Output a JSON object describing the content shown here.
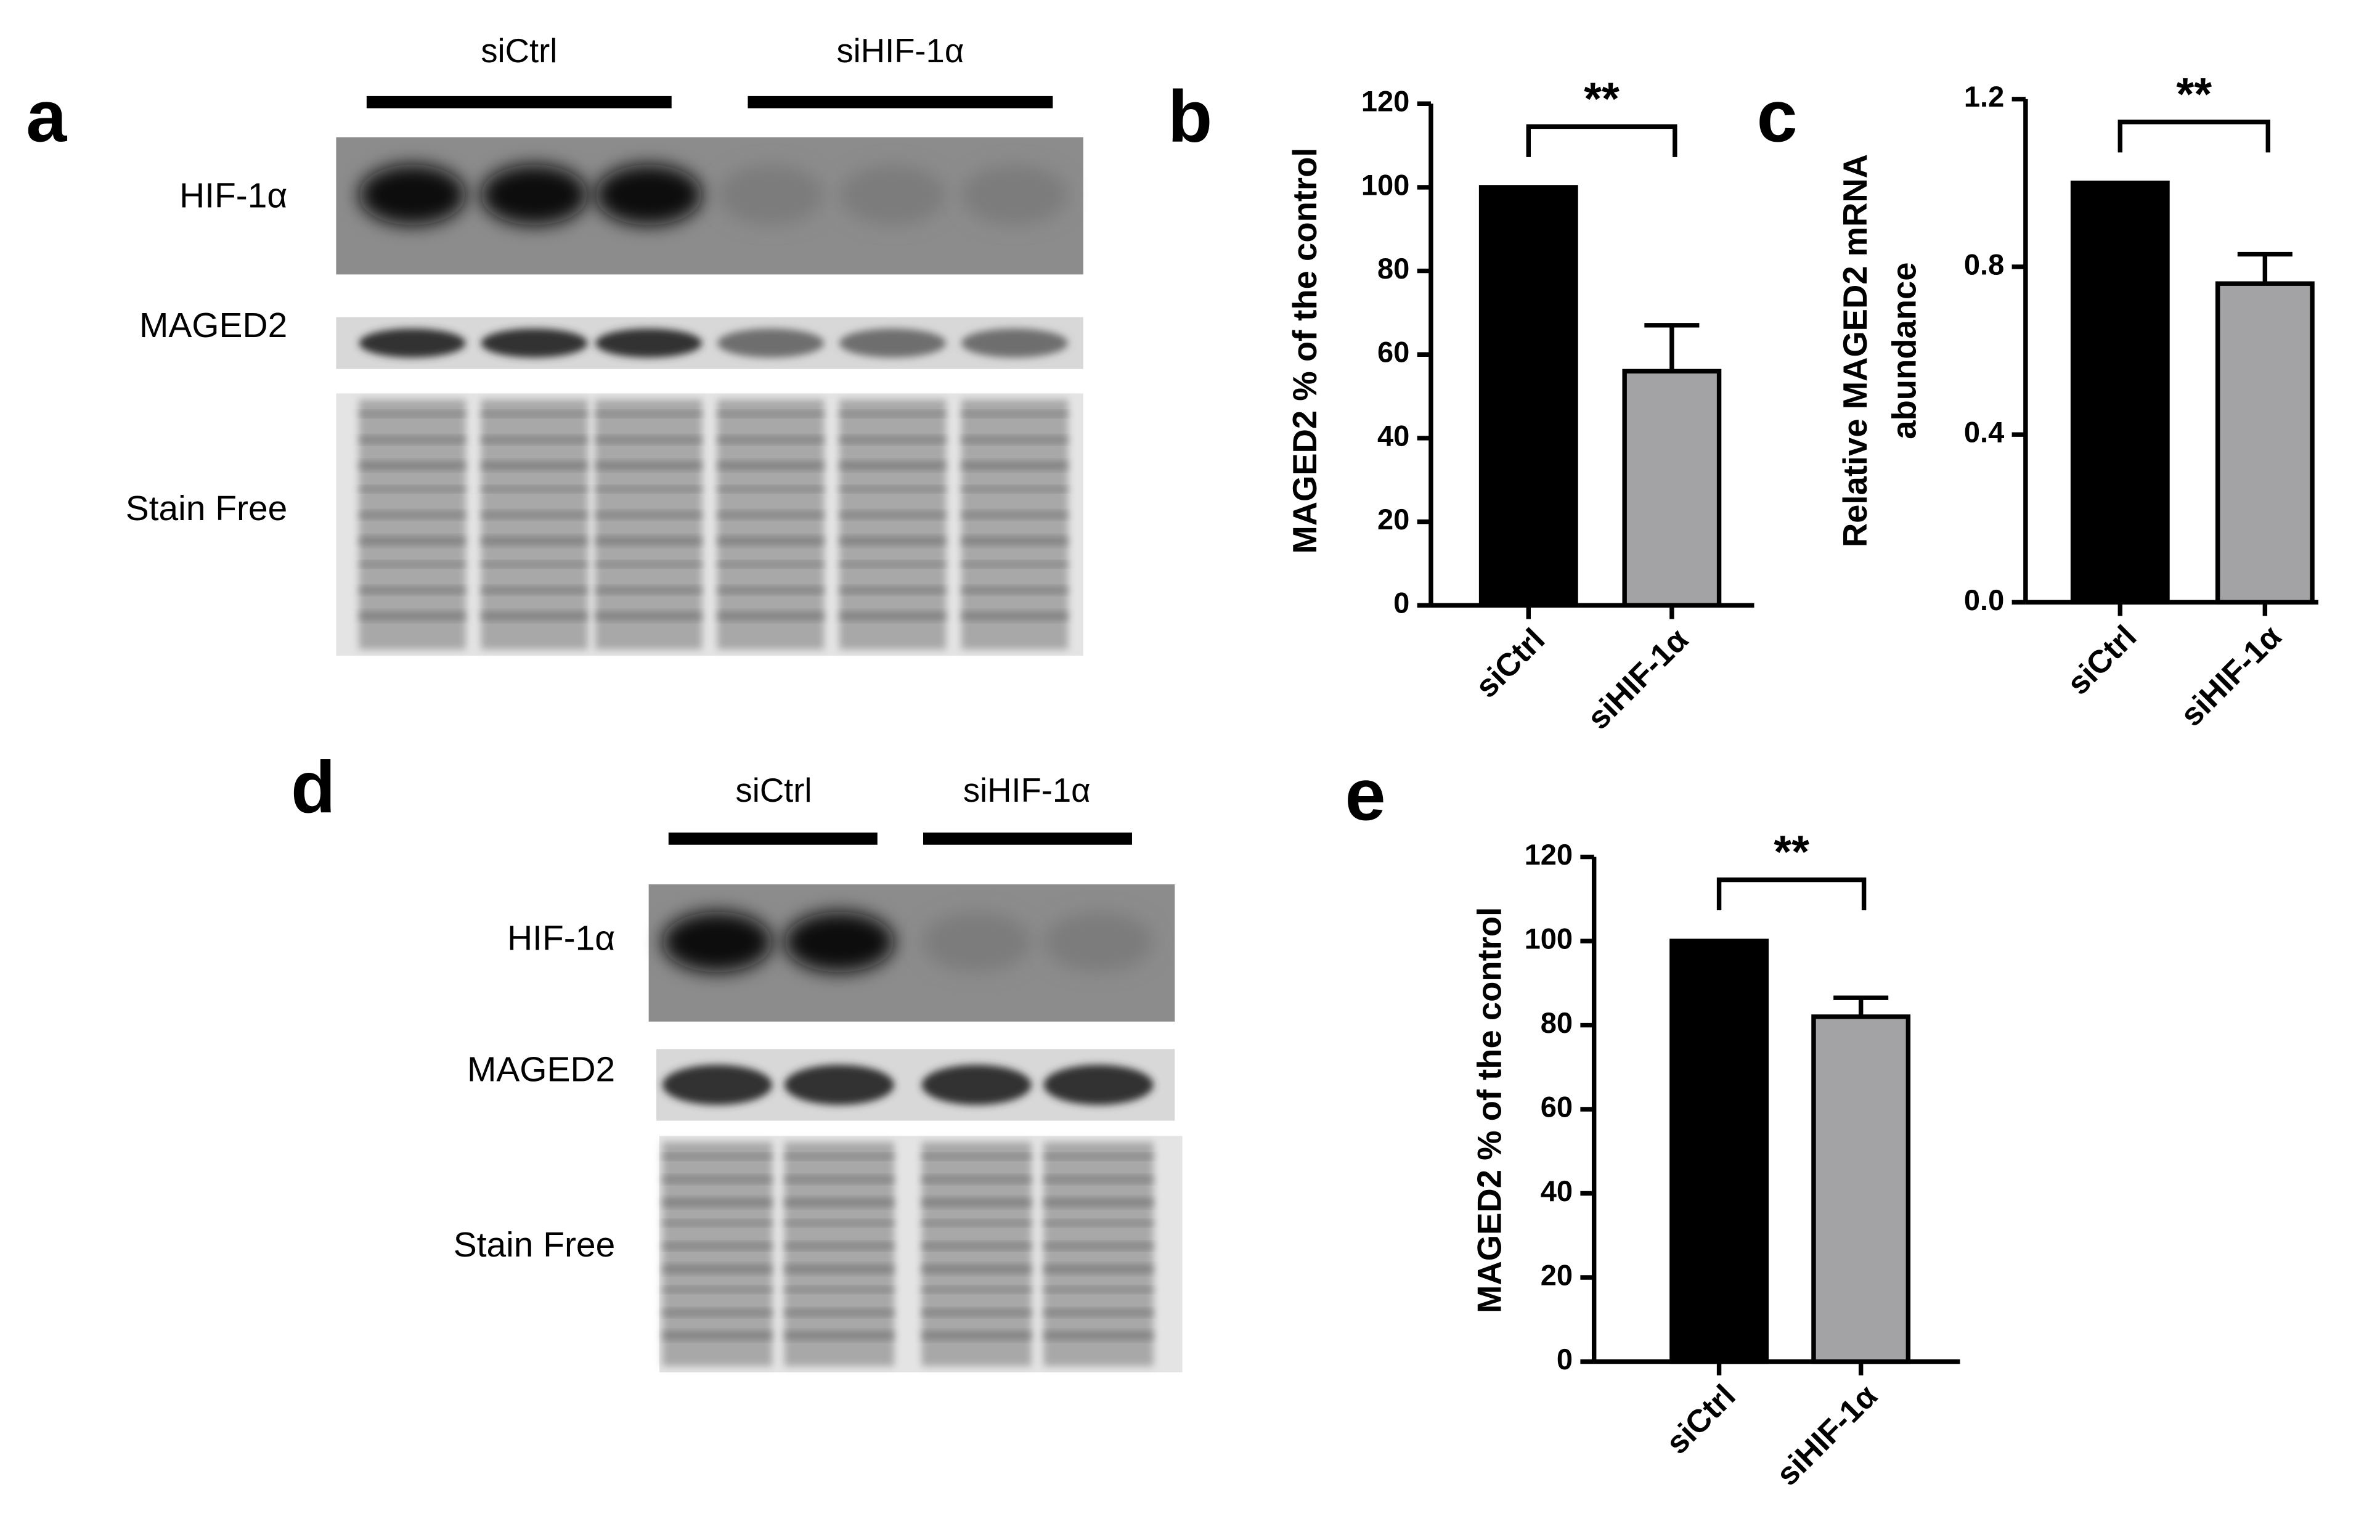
{
  "blots": [
    {
      "label": "a",
      "groups": [
        "siCtrl",
        "siHIF-1α"
      ],
      "rows": [
        "HIF-1α",
        "MAGED2",
        "Stain Free"
      ]
    },
    {
      "label": "d",
      "groups": [
        "siCtrl",
        "siHIF-1α"
      ],
      "rows": [
        "HIF-1α",
        "MAGED2",
        "Stain Free"
      ]
    }
  ],
  "chart_data": [
    {
      "type": "bar",
      "label": "b",
      "ylabel": [
        "MAGED2 % of the control"
      ],
      "categories": [
        "siCtrl",
        "siHIF-1α"
      ],
      "values": [
        100,
        56
      ],
      "errors": [
        null,
        11
      ],
      "colors": [
        "#000000",
        "#a3a3a6"
      ],
      "annotation": "**",
      "ylim": [
        0,
        120
      ],
      "yticks": [
        0,
        20,
        40,
        60,
        80,
        100,
        120
      ]
    },
    {
      "type": "bar",
      "label": "c",
      "ylabel": [
        "Relative MAGED2 mRNA",
        "abundance"
      ],
      "categories": [
        "siCtrl",
        "siHIF-1α"
      ],
      "values": [
        1.0,
        0.76
      ],
      "errors": [
        null,
        0.07
      ],
      "colors": [
        "#000000",
        "#a3a3a6"
      ],
      "annotation": "**",
      "ylim": [
        0,
        1.2
      ],
      "yticks": [
        {
          "value": 0,
          "label": "0.0"
        },
        0.4,
        0.8,
        1.2
      ]
    },
    {
      "type": "bar",
      "label": "e",
      "ylabel": [
        "MAGED2 % of the control"
      ],
      "categories": [
        "siCtrl",
        "siHIF-1α"
      ],
      "values": [
        100,
        82
      ],
      "errors": [
        null,
        4.5
      ],
      "colors": [
        "#000000",
        "#a3a3a6"
      ],
      "annotation": "**",
      "ylim": [
        0,
        120
      ],
      "yticks": [
        0,
        20,
        40,
        60,
        80,
        100,
        120
      ]
    }
  ]
}
